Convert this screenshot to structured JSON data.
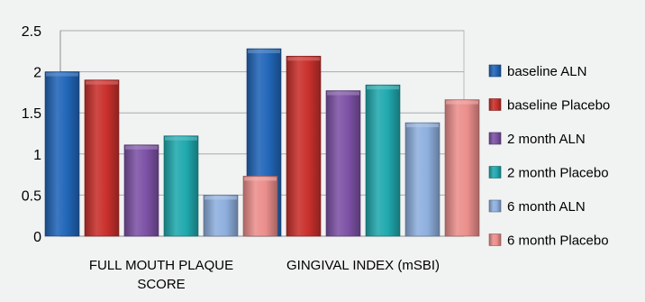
{
  "chart_data": {
    "type": "bar",
    "title": "",
    "xlabel": "",
    "ylabel": "",
    "ylim": [
      0,
      2.5
    ],
    "yticks": [
      "0",
      "0.5",
      "1",
      "1.5",
      "2",
      "2.5"
    ],
    "grid": true,
    "legend_position": "right",
    "categories": [
      [
        "FULL MOUTH PLAQUE",
        "SCORE"
      ],
      [
        "GINGIVAL INDEX (mSBI)"
      ]
    ],
    "series": [
      {
        "name": "baseline ALN",
        "color": "#2166b8",
        "values": [
          2.0,
          2.28
        ]
      },
      {
        "name": "baseline Placebo",
        "color": "#c9302c",
        "values": [
          1.9,
          2.19
        ]
      },
      {
        "name": "2 month ALN",
        "color": "#7d52a6",
        "values": [
          1.11,
          1.77
        ]
      },
      {
        "name": "2 month Placebo",
        "color": "#20a9ae",
        "values": [
          1.22,
          1.84
        ]
      },
      {
        "name": "6 month ALN",
        "color": "#8eafde",
        "values": [
          0.5,
          1.38
        ]
      },
      {
        "name": "6 month Placebo",
        "color": "#eb8f8c",
        "values": [
          0.73,
          1.66
        ]
      }
    ]
  }
}
